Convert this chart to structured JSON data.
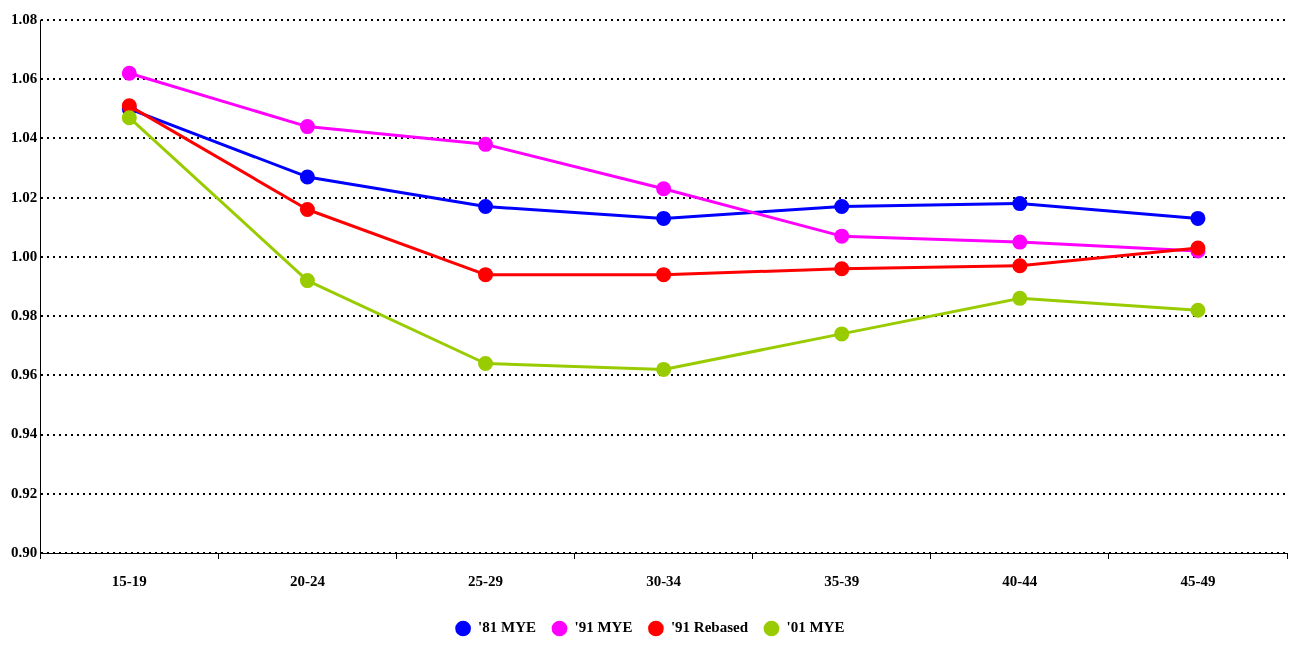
{
  "chart_data": {
    "type": "line",
    "categories": [
      "15-19",
      "20-24",
      "25-29",
      "30-34",
      "35-39",
      "40-44",
      "45-49"
    ],
    "series": [
      {
        "name": "'81 MYE",
        "color": "#0000ff",
        "values": [
          1.05,
          1.027,
          1.017,
          1.013,
          1.017,
          1.018,
          1.013
        ]
      },
      {
        "name": "'91 MYE",
        "color": "#ff00ff",
        "values": [
          1.062,
          1.044,
          1.038,
          1.023,
          1.007,
          1.005,
          1.002
        ]
      },
      {
        "name": "'91 Rebased",
        "color": "#ff0000",
        "values": [
          1.051,
          1.016,
          0.994,
          0.994,
          0.996,
          0.997,
          1.003
        ]
      },
      {
        "name": "'01 MYE",
        "color": "#99cc00",
        "values": [
          1.047,
          0.992,
          0.964,
          0.962,
          0.974,
          0.986,
          0.982
        ]
      }
    ],
    "ylim": [
      0.9,
      1.08
    ],
    "yticks": [
      {
        "value": 0.9,
        "label": "0.90"
      },
      0.92,
      0.94,
      0.96,
      0.98,
      {
        "value": 1.0,
        "label": "1.00"
      },
      1.02,
      1.04,
      1.06,
      1.08
    ],
    "grid": "y",
    "legend": "bottom",
    "marker": "circle",
    "line_style": "solid"
  }
}
